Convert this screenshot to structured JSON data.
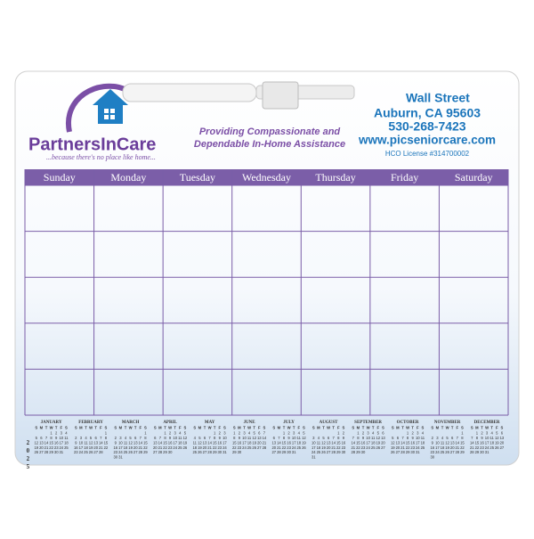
{
  "header": {
    "logo_name": "PartnersInCare",
    "logo_tagline": "...because there's no place like home...",
    "slogan_line1": "Providing Compassionate and",
    "slogan_line2": "Dependable In-Home Assistance",
    "address_street": "Wall Street",
    "address_city": "Auburn, CA 95603",
    "phone": "530-268-7423",
    "website": "www.picseniorcare.com",
    "license": "HCO License #314700002"
  },
  "calendar": {
    "weekdays": [
      "Sunday",
      "Monday",
      "Tuesday",
      "Wednesday",
      "Thursday",
      "Friday",
      "Saturday"
    ]
  },
  "mini_calendars": {
    "year": "2025",
    "weekday_initials": [
      "S",
      "M",
      "T",
      "W",
      "T",
      "F",
      "S"
    ],
    "months": [
      {
        "name": "JANUARY",
        "weeks": [
          [
            null,
            null,
            null,
            1,
            2,
            3,
            4
          ],
          [
            5,
            6,
            7,
            8,
            9,
            10,
            11
          ],
          [
            12,
            13,
            14,
            15,
            16,
            17,
            18
          ],
          [
            19,
            20,
            21,
            22,
            23,
            24,
            25
          ],
          [
            26,
            27,
            28,
            29,
            30,
            31
          ]
        ]
      },
      {
        "name": "FEBRUARY",
        "weeks": [
          [
            null,
            null,
            null,
            null,
            null,
            null,
            1
          ],
          [
            2,
            3,
            4,
            5,
            6,
            7,
            8
          ],
          [
            9,
            10,
            11,
            12,
            13,
            14,
            15
          ],
          [
            16,
            17,
            18,
            19,
            20,
            21,
            22
          ],
          [
            23,
            24,
            25,
            26,
            27,
            28
          ]
        ]
      },
      {
        "name": "MARCH",
        "weeks": [
          [
            null,
            null,
            null,
            null,
            null,
            null,
            1
          ],
          [
            2,
            3,
            4,
            5,
            6,
            7,
            8
          ],
          [
            9,
            10,
            11,
            12,
            13,
            14,
            15
          ],
          [
            16,
            17,
            18,
            19,
            20,
            21,
            22
          ],
          [
            23,
            24,
            25,
            26,
            27,
            28,
            29
          ],
          [
            30,
            31
          ]
        ]
      },
      {
        "name": "APRIL",
        "weeks": [
          [
            null,
            null,
            1,
            2,
            3,
            4,
            5
          ],
          [
            6,
            7,
            8,
            9,
            10,
            11,
            12
          ],
          [
            13,
            14,
            15,
            16,
            17,
            18,
            19
          ],
          [
            20,
            21,
            22,
            23,
            24,
            25,
            26
          ],
          [
            27,
            28,
            29,
            30
          ]
        ]
      },
      {
        "name": "MAY",
        "weeks": [
          [
            null,
            null,
            null,
            null,
            1,
            2,
            3
          ],
          [
            4,
            5,
            6,
            7,
            8,
            9,
            10
          ],
          [
            11,
            12,
            13,
            14,
            15,
            16,
            17
          ],
          [
            18,
            19,
            20,
            21,
            22,
            23,
            24
          ],
          [
            25,
            26,
            27,
            28,
            29,
            30,
            31
          ]
        ]
      },
      {
        "name": "JUNE",
        "weeks": [
          [
            1,
            2,
            3,
            4,
            5,
            6,
            7
          ],
          [
            8,
            9,
            10,
            11,
            12,
            13,
            14
          ],
          [
            15,
            16,
            17,
            18,
            19,
            20,
            21
          ],
          [
            22,
            23,
            24,
            25,
            26,
            27,
            28
          ],
          [
            29,
            30
          ]
        ]
      },
      {
        "name": "JULY",
        "weeks": [
          [
            null,
            null,
            1,
            2,
            3,
            4,
            5
          ],
          [
            6,
            7,
            8,
            9,
            10,
            11,
            12
          ],
          [
            13,
            14,
            15,
            16,
            17,
            18,
            19
          ],
          [
            20,
            21,
            22,
            23,
            24,
            25,
            26
          ],
          [
            27,
            28,
            29,
            30,
            31
          ]
        ]
      },
      {
        "name": "AUGUST",
        "weeks": [
          [
            null,
            null,
            null,
            null,
            null,
            1,
            2
          ],
          [
            3,
            4,
            5,
            6,
            7,
            8,
            9
          ],
          [
            10,
            11,
            12,
            13,
            14,
            15,
            16
          ],
          [
            17,
            18,
            19,
            20,
            21,
            22,
            23
          ],
          [
            24,
            25,
            26,
            27,
            28,
            29,
            30
          ],
          [
            31
          ]
        ]
      },
      {
        "name": "SEPTEMBER",
        "weeks": [
          [
            null,
            1,
            2,
            3,
            4,
            5,
            6
          ],
          [
            7,
            8,
            9,
            10,
            11,
            12,
            13
          ],
          [
            14,
            15,
            16,
            17,
            18,
            19,
            20
          ],
          [
            21,
            22,
            23,
            24,
            25,
            26,
            27
          ],
          [
            28,
            29,
            30
          ]
        ]
      },
      {
        "name": "OCTOBER",
        "weeks": [
          [
            null,
            null,
            null,
            1,
            2,
            3,
            4
          ],
          [
            5,
            6,
            7,
            8,
            9,
            10,
            11
          ],
          [
            12,
            13,
            14,
            15,
            16,
            17,
            18
          ],
          [
            19,
            20,
            21,
            22,
            23,
            24,
            25
          ],
          [
            26,
            27,
            28,
            29,
            30,
            31
          ]
        ]
      },
      {
        "name": "NOVEMBER",
        "weeks": [
          [
            null,
            null,
            null,
            null,
            null,
            null,
            1
          ],
          [
            2,
            3,
            4,
            5,
            6,
            7,
            8
          ],
          [
            9,
            10,
            11,
            12,
            13,
            14,
            15
          ],
          [
            16,
            17,
            18,
            19,
            20,
            21,
            22
          ],
          [
            23,
            24,
            25,
            26,
            27,
            28,
            29
          ],
          [
            30
          ]
        ]
      },
      {
        "name": "DECEMBER",
        "weeks": [
          [
            null,
            1,
            2,
            3,
            4,
            5,
            6
          ],
          [
            7,
            8,
            9,
            10,
            11,
            12,
            13
          ],
          [
            14,
            15,
            16,
            17,
            18,
            19,
            20
          ],
          [
            21,
            22,
            23,
            24,
            25,
            26,
            27
          ],
          [
            28,
            29,
            30,
            31
          ]
        ]
      }
    ]
  }
}
